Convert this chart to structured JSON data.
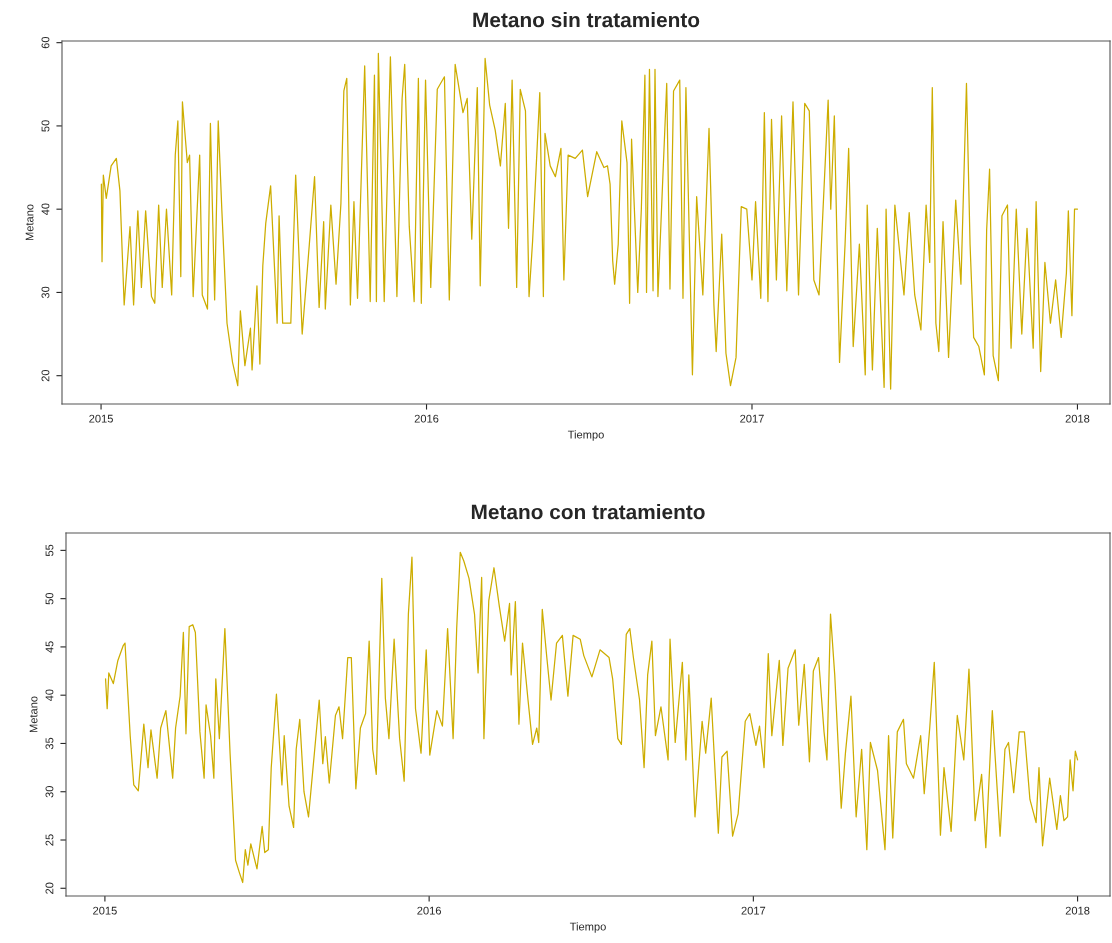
{
  "chart_data": [
    {
      "type": "line",
      "title": "Metano sin tratamiento",
      "xlabel": "Tiempo",
      "ylabel": "Metano",
      "xlim": [
        2014.88,
        2018.1
      ],
      "xticks": [
        2015,
        2016,
        2017,
        2018
      ],
      "ylim": [
        16.6,
        60.2
      ],
      "yticks": [
        20,
        30,
        40,
        50,
        60
      ],
      "grid": false,
      "legend": false,
      "series": [
        {
          "color": "#cdad00",
          "x": [
            2015.001,
            2015.003,
            2015.007,
            2015.016,
            2015.031,
            2015.047,
            2015.058,
            2015.071,
            2015.089,
            2015.1,
            2015.113,
            2015.124,
            2015.137,
            2015.155,
            2015.165,
            2015.177,
            2015.188,
            2015.201,
            2015.217,
            2015.228,
            2015.236,
            2015.245,
            2015.25,
            2015.265,
            2015.272,
            2015.283,
            2015.303,
            2015.311,
            2015.327,
            2015.336,
            2015.349,
            2015.36,
            2015.371,
            2015.387,
            2015.404,
            2015.42,
            2015.428,
            2015.442,
            2015.459,
            2015.464,
            2015.479,
            2015.488,
            2015.497,
            2015.506,
            2015.521,
            2015.541,
            2015.547,
            2015.558,
            2015.583,
            2015.598,
            2015.618,
            2015.64,
            2015.656,
            2015.67,
            2015.684,
            2015.689,
            2015.706,
            2015.722,
            2015.737,
            2015.746,
            2015.755,
            2015.766,
            2015.777,
            2015.788,
            2015.81,
            2015.827,
            2015.84,
            2015.846,
            2015.852,
            2015.87,
            2015.889,
            2015.909,
            2015.925,
            2015.933,
            2015.947,
            2015.962,
            2015.975,
            2015.984,
            2015.997,
            2016.013,
            2016.033,
            2016.055,
            2016.07,
            2016.088,
            2016.112,
            2016.125,
            2016.139,
            2016.156,
            2016.165,
            2016.18,
            2016.194,
            2016.211,
            2016.227,
            2016.242,
            2016.252,
            2016.263,
            2016.277,
            2016.288,
            2016.304,
            2016.315,
            2016.326,
            2016.348,
            2016.359,
            2016.364,
            2016.38,
            2016.396,
            2016.413,
            2016.422,
            2016.435,
            2016.457,
            2016.479,
            2016.495,
            2016.523,
            2016.545,
            2016.556,
            2016.564,
            2016.572,
            2016.578,
            2016.589,
            2016.6,
            2016.616,
            2016.624,
            2016.63,
            2016.649,
            2016.66,
            2016.671,
            2016.676,
            2016.685,
            2016.696,
            2016.702,
            2016.711,
            2016.738,
            2016.748,
            2016.759,
            2016.778,
            2016.788,
            2016.797,
            2016.817,
            2016.83,
            2016.849,
            2016.868,
            2016.883,
            2016.89,
            2016.907,
            2016.92,
            2016.934,
            2016.951,
            2016.967,
            2016.984,
            2017.0,
            2017.011,
            2017.027,
            2017.038,
            2017.049,
            2017.06,
            2017.075,
            2017.091,
            2017.107,
            2017.126,
            2017.143,
            2017.162,
            2017.176,
            2017.19,
            2017.206,
            2017.234,
            2017.242,
            2017.253,
            2017.269,
            2017.286,
            2017.297,
            2017.311,
            2017.33,
            2017.348,
            2017.354,
            2017.37,
            2017.385,
            2017.406,
            2017.412,
            2017.426,
            2017.439,
            2017.467,
            2017.483,
            2017.5,
            2017.519,
            2017.535,
            2017.546,
            2017.554,
            2017.565,
            2017.574,
            2017.587,
            2017.604,
            2017.626,
            2017.642,
            2017.659,
            2017.67,
            2017.681,
            2017.697,
            2017.714,
            2017.721,
            2017.73,
            2017.741,
            2017.757,
            2017.768,
            2017.785,
            2017.796,
            2017.812,
            2017.829,
            2017.845,
            2017.864,
            2017.873,
            2017.887,
            2017.9,
            2017.917,
            2017.933,
            2017.95,
            2017.966,
            2017.972,
            2017.983,
            2017.991,
            2018.0
          ],
          "values": [
            43.0,
            33.7,
            44.1,
            41.3,
            45.2,
            46.1,
            42.2,
            28.5,
            37.9,
            28.5,
            39.8,
            30.6,
            39.8,
            29.5,
            28.7,
            40.5,
            30.6,
            40.0,
            29.7,
            46.5,
            50.6,
            31.9,
            52.9,
            45.6,
            46.5,
            29.5,
            46.5,
            29.7,
            28.0,
            50.3,
            29.1,
            50.6,
            40.0,
            26.3,
            21.6,
            18.8,
            27.8,
            21.2,
            25.7,
            20.7,
            30.8,
            21.4,
            33.2,
            38.3,
            42.8,
            26.3,
            39.2,
            26.3,
            26.3,
            44.1,
            25.0,
            35.8,
            43.9,
            28.2,
            38.5,
            28.0,
            40.5,
            31.0,
            40.7,
            54.2,
            55.7,
            28.5,
            40.9,
            29.3,
            57.2,
            28.9,
            56.1,
            28.9,
            58.7,
            28.9,
            58.3,
            29.5,
            53.3,
            57.4,
            37.9,
            28.9,
            55.7,
            28.7,
            55.5,
            30.6,
            54.4,
            55.9,
            29.1,
            57.4,
            51.6,
            53.3,
            36.4,
            54.6,
            30.8,
            58.1,
            52.5,
            49.5,
            45.2,
            52.7,
            37.7,
            55.5,
            30.6,
            54.4,
            51.8,
            29.5,
            36.2,
            54.0,
            29.5,
            49.1,
            45.2,
            43.9,
            47.3,
            31.5,
            46.5,
            46.1,
            47.1,
            41.5,
            46.9,
            45.0,
            45.2,
            43.0,
            33.8,
            31.0,
            35.8,
            50.6,
            45.6,
            28.7,
            48.4,
            30.0,
            40.0,
            56.1,
            30.0,
            56.8,
            30.2,
            56.8,
            29.5,
            55.1,
            30.4,
            54.2,
            55.5,
            29.3,
            54.6,
            20.1,
            41.5,
            29.7,
            49.7,
            28.5,
            22.9,
            37.0,
            22.7,
            18.8,
            22.2,
            40.3,
            40.0,
            31.5,
            40.9,
            29.3,
            51.6,
            28.9,
            50.8,
            31.5,
            51.2,
            30.2,
            52.9,
            29.7,
            52.7,
            51.8,
            31.5,
            29.7,
            53.1,
            40.0,
            51.2,
            21.6,
            35.8,
            47.3,
            23.5,
            35.8,
            20.1,
            40.5,
            20.7,
            37.7,
            18.6,
            40.0,
            18.4,
            40.5,
            29.7,
            39.6,
            29.7,
            25.5,
            40.5,
            33.6,
            54.6,
            26.3,
            22.9,
            38.5,
            22.2,
            41.1,
            31.0,
            55.1,
            35.8,
            24.6,
            23.5,
            20.1,
            37.5,
            44.8,
            22.4,
            19.4,
            39.2,
            40.5,
            23.3,
            40.0,
            25.0,
            37.7,
            23.3,
            40.9,
            20.5,
            33.6,
            26.3,
            31.5,
            24.6,
            32.3,
            39.8,
            27.2,
            40.0,
            40.0
          ]
        }
      ]
    },
    {
      "type": "line",
      "title": "Metano con tratamiento",
      "xlabel": "Tiempo",
      "ylabel": "Metano",
      "xlim": [
        2014.88,
        2018.1
      ],
      "xticks": [
        2015,
        2016,
        2017,
        2018
      ],
      "ylim": [
        19.2,
        56.8
      ],
      "yticks": [
        20,
        25,
        30,
        35,
        40,
        45,
        50,
        55
      ],
      "grid": false,
      "legend": false,
      "series": [
        {
          "color": "#cdad00",
          "x": [
            2015.002,
            2015.007,
            2015.012,
            2015.026,
            2015.04,
            2015.056,
            2015.062,
            2015.078,
            2015.089,
            2015.103,
            2015.12,
            2015.133,
            2015.142,
            2015.161,
            2015.172,
            2015.188,
            2015.209,
            2015.218,
            2015.232,
            2015.242,
            2015.25,
            2015.26,
            2015.271,
            2015.279,
            2015.293,
            2015.306,
            2015.312,
            2015.326,
            2015.336,
            2015.342,
            2015.353,
            2015.37,
            2015.386,
            2015.403,
            2015.414,
            2015.425,
            2015.433,
            2015.441,
            2015.45,
            2015.469,
            2015.485,
            2015.493,
            2015.504,
            2015.513,
            2015.529,
            2015.546,
            2015.553,
            2015.568,
            2015.582,
            2015.59,
            2015.601,
            2015.614,
            2015.628,
            2015.645,
            2015.661,
            2015.672,
            2015.68,
            2015.692,
            2015.711,
            2015.722,
            2015.733,
            2015.749,
            2015.76,
            2015.774,
            2015.788,
            2015.804,
            2015.815,
            2015.826,
            2015.837,
            2015.854,
            2015.865,
            2015.876,
            2015.892,
            2015.909,
            2015.923,
            2015.936,
            2015.947,
            2015.958,
            2015.975,
            2015.991,
            2016.002,
            2016.024,
            2016.041,
            2016.057,
            2016.074,
            2016.085,
            2016.096,
            2016.107,
            2016.123,
            2016.14,
            2016.151,
            2016.162,
            2016.169,
            2016.184,
            2016.2,
            2016.217,
            2016.233,
            2016.248,
            2016.253,
            2016.266,
            2016.277,
            2016.288,
            2016.305,
            2016.319,
            2016.332,
            2016.338,
            2016.349,
            2016.363,
            2016.376,
            2016.393,
            2016.411,
            2016.428,
            2016.444,
            2016.466,
            2016.477,
            2016.502,
            2016.527,
            2016.555,
            2016.566,
            2016.582,
            2016.593,
            2016.608,
            2016.619,
            2016.63,
            2016.649,
            2016.663,
            2016.674,
            2016.687,
            2016.698,
            2016.715,
            2016.737,
            2016.743,
            2016.759,
            2016.781,
            2016.792,
            2016.801,
            2016.82,
            2016.842,
            2016.853,
            2016.87,
            2016.892,
            2016.903,
            2016.919,
            2016.936,
            2016.953,
            2016.964,
            2016.975,
            2016.989,
            2017.008,
            2017.019,
            2017.033,
            2017.046,
            2017.057,
            2017.08,
            2017.091,
            2017.107,
            2017.129,
            2017.14,
            2017.157,
            2017.173,
            2017.185,
            2017.201,
            2017.218,
            2017.227,
            2017.238,
            2017.251,
            2017.271,
            2017.284,
            2017.301,
            2017.317,
            2017.334,
            2017.35,
            2017.361,
            2017.383,
            2017.406,
            2017.417,
            2017.43,
            2017.444,
            2017.463,
            2017.472,
            2017.494,
            2017.516,
            2017.527,
            2017.544,
            2017.558,
            2017.577,
            2017.588,
            2017.61,
            2017.629,
            2017.649,
            2017.665,
            2017.684,
            2017.704,
            2017.717,
            2017.737,
            2017.761,
            2017.776,
            2017.787,
            2017.803,
            2017.82,
            2017.836,
            2017.853,
            2017.872,
            2017.881,
            2017.892,
            2017.914,
            2017.936,
            2017.947,
            2017.958,
            2017.969,
            2017.977,
            2017.986,
            2017.993,
            2018.0
          ],
          "values": [
            41.7,
            38.6,
            42.3,
            41.2,
            43.6,
            45.1,
            45.4,
            35.8,
            30.7,
            30.1,
            37.0,
            32.5,
            36.4,
            31.4,
            36.6,
            38.4,
            31.4,
            36.6,
            39.9,
            46.5,
            36.0,
            47.1,
            47.3,
            46.5,
            36.2,
            31.4,
            39.0,
            35.8,
            31.4,
            41.7,
            35.5,
            46.9,
            34.0,
            22.9,
            21.7,
            20.6,
            24.0,
            22.4,
            24.6,
            22.0,
            26.4,
            23.7,
            24.0,
            32.5,
            40.1,
            30.7,
            35.8,
            28.5,
            26.3,
            34.4,
            37.5,
            30.0,
            27.4,
            33.6,
            39.5,
            32.9,
            35.7,
            30.9,
            37.9,
            38.8,
            35.5,
            43.9,
            43.9,
            30.3,
            36.6,
            38.1,
            45.6,
            34.4,
            31.8,
            52.1,
            39.7,
            35.5,
            45.8,
            35.5,
            31.1,
            48.4,
            54.3,
            38.6,
            34.0,
            44.7,
            33.8,
            38.4,
            36.8,
            46.9,
            35.5,
            46.9,
            54.8,
            53.9,
            52.1,
            48.4,
            42.3,
            52.2,
            35.5,
            49.8,
            53.2,
            49.1,
            45.6,
            49.5,
            42.1,
            49.7,
            37.0,
            45.4,
            39.5,
            34.9,
            36.6,
            35.1,
            48.9,
            43.9,
            39.5,
            45.4,
            46.2,
            39.9,
            46.2,
            45.8,
            44.1,
            41.9,
            44.7,
            43.9,
            41.7,
            35.5,
            34.9,
            46.3,
            46.9,
            43.9,
            39.5,
            32.5,
            42.1,
            45.6,
            35.8,
            38.8,
            33.3,
            45.8,
            35.1,
            43.4,
            33.3,
            42.1,
            27.4,
            37.3,
            34.0,
            39.7,
            25.7,
            33.6,
            34.2,
            25.4,
            27.7,
            32.5,
            37.3,
            38.1,
            34.8,
            36.8,
            32.5,
            44.3,
            35.8,
            43.6,
            34.8,
            42.8,
            44.7,
            36.9,
            43.2,
            33.1,
            42.5,
            43.9,
            36.2,
            33.3,
            48.4,
            42.1,
            28.3,
            34.0,
            39.9,
            27.4,
            34.4,
            24.0,
            35.1,
            32.2,
            24.0,
            35.8,
            25.2,
            36.2,
            37.5,
            32.9,
            31.4,
            35.8,
            29.8,
            36.6,
            43.4,
            25.5,
            32.5,
            25.9,
            37.9,
            33.3,
            42.7,
            27.0,
            31.8,
            24.2,
            38.4,
            25.4,
            34.4,
            35.1,
            29.9,
            36.2,
            36.2,
            29.2,
            26.8,
            32.5,
            24.4,
            31.4,
            26.1,
            29.6,
            27.0,
            27.4,
            33.3,
            30.1,
            34.2,
            33.3
          ]
        }
      ]
    }
  ]
}
